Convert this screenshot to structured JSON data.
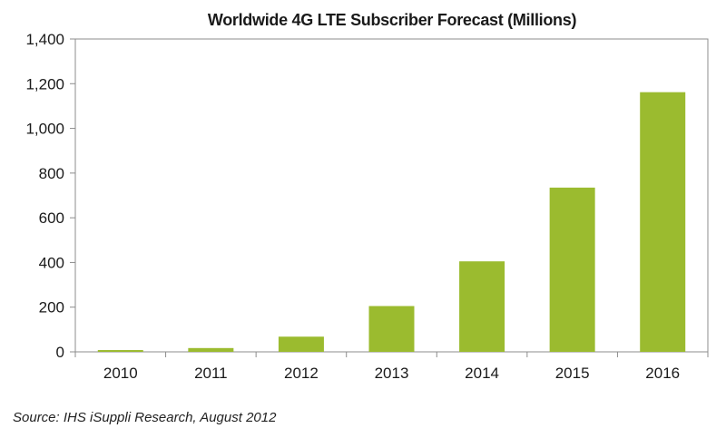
{
  "chart_data": {
    "type": "bar",
    "title": "Worldwide 4G LTE Subscriber Forecast (Millions)",
    "categories": [
      "2010",
      "2011",
      "2012",
      "2013",
      "2014",
      "2015",
      "2016"
    ],
    "values": [
      8,
      17,
      68,
      205,
      405,
      735,
      1162
    ],
    "xlabel": "",
    "ylabel": "",
    "ylim": [
      0,
      1400
    ],
    "yticks": [
      0,
      200,
      400,
      600,
      800,
      1000,
      1200,
      1400
    ],
    "ytick_labels": [
      "0",
      "200",
      "400",
      "600",
      "800",
      "1,000",
      "1,200",
      "1,400"
    ],
    "grid": false,
    "legend": "none",
    "bar_color": "#9bbb2f"
  },
  "source": "Source: IHS iSuppli Research, August 2012"
}
